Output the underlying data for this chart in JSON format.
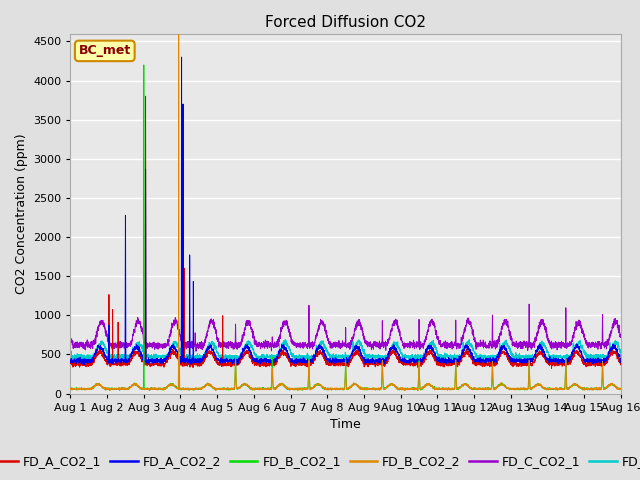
{
  "title": "Forced Diffusion CO2",
  "ylabel": "CO2 Concentration (ppm)",
  "xlabel": "Time",
  "xlim_days": [
    0,
    15
  ],
  "ylim": [
    0,
    4600
  ],
  "yticks": [
    0,
    500,
    1000,
    1500,
    2000,
    2500,
    3000,
    3500,
    4000,
    4500
  ],
  "xtick_labels": [
    "Aug 1",
    "Aug 2",
    "Aug 3",
    "Aug 4",
    "Aug 5",
    "Aug 6",
    "Aug 7",
    "Aug 8",
    "Aug 9",
    "Aug 10",
    "Aug 11",
    "Aug 12",
    "Aug 13",
    "Aug 14",
    "Aug 15",
    "Aug 16"
  ],
  "fig_bg_color": "#e0e0e0",
  "plot_bg_color": "#e8e8e8",
  "series_colors": {
    "FD_A_CO2_1": "#dd0000",
    "FD_A_CO2_2": "#0000ee",
    "FD_B_CO2_1": "#00dd00",
    "FD_B_CO2_2": "#dd8800",
    "FD_C_CO2_1": "#9900cc",
    "FD_C_CO2_2": "#00cccc"
  },
  "annotation_text": "BC_met",
  "annotation_color": "#880000",
  "annotation_bg": "#ffffaa",
  "annotation_border": "#cc8800",
  "title_fontsize": 11,
  "axis_label_fontsize": 9,
  "tick_fontsize": 8,
  "legend_fontsize": 9
}
